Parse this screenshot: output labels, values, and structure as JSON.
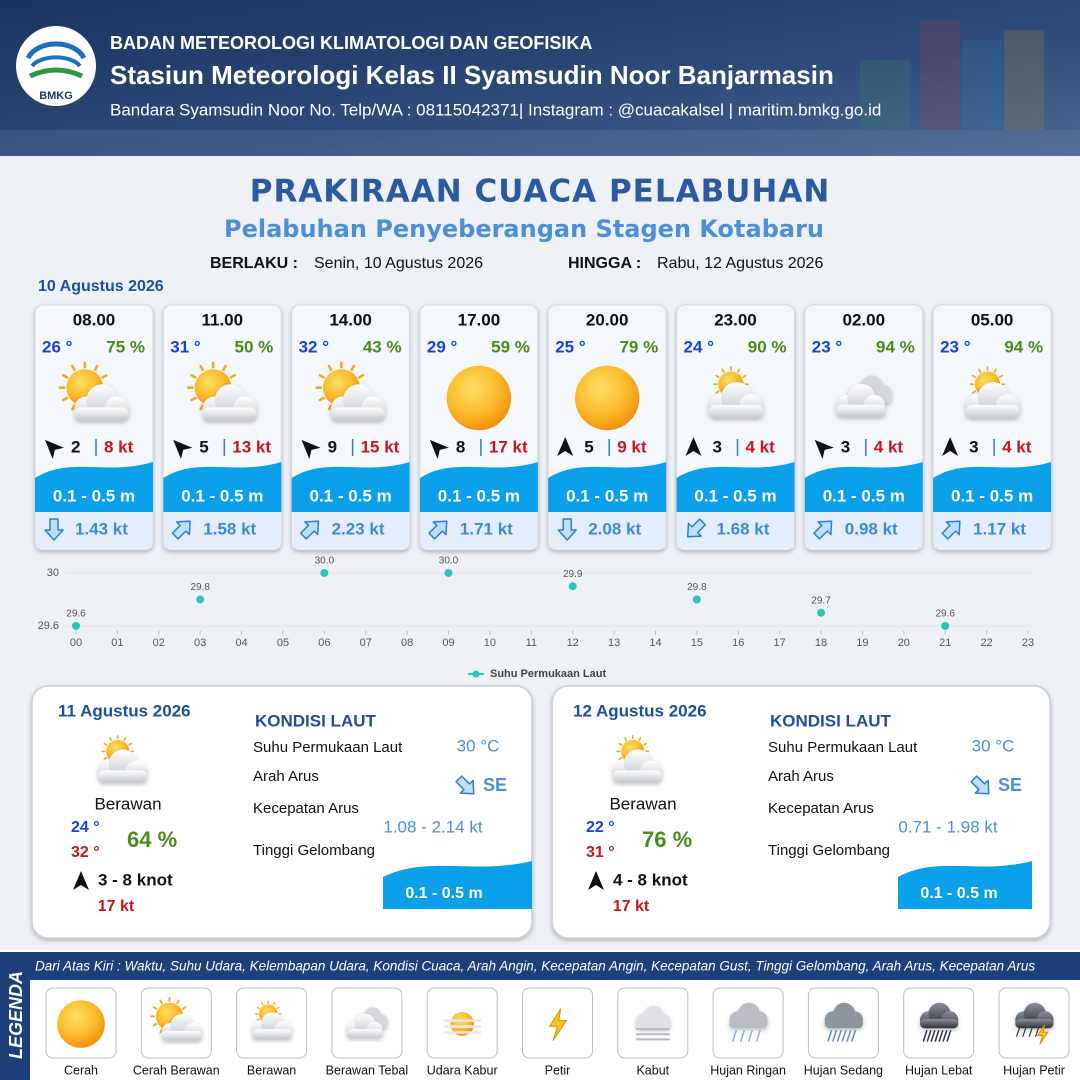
{
  "header": {
    "logo_text": "BMKG",
    "org": "BADAN METEOROLOGI KLIMATOLOGI DAN GEOFISIKA",
    "station": "Stasiun Meteorologi Kelas II Syamsudin Noor Banjarmasin",
    "contact": "Bandara Syamsudin Noor No. Telp/WA : 08115042371| Instagram : @cuacakalsel | maritim.bmkg.go.id"
  },
  "title": "PRAKIRAAN CUACA PELABUHAN",
  "subtitle": "Pelabuhan Penyeberangan Stagen Kotabaru",
  "validity": {
    "from_label": "BERLAKU :",
    "from": "Senin, 10 Agustus 2026",
    "to_label": "HINGGA :",
    "to": "Rabu, 12 Agustus 2026"
  },
  "today": {
    "date": "10 Agustus 2026",
    "forecasts": [
      {
        "time": "08.00",
        "temp": "26 °",
        "humidity": "75 %",
        "icon": "cerah-berawan",
        "wind_dir": "NW",
        "wind": "2",
        "gust": "8 kt",
        "wave": "0.1 - 0.5 m",
        "current_dir": "S",
        "current": "1.43 kt"
      },
      {
        "time": "11.00",
        "temp": "31 °",
        "humidity": "50 %",
        "icon": "cerah-berawan",
        "wind_dir": "NW",
        "wind": "5",
        "gust": "13 kt",
        "wave": "0.1 - 0.5 m",
        "current_dir": "NE",
        "current": "1.58 kt"
      },
      {
        "time": "14.00",
        "temp": "32 °",
        "humidity": "43 %",
        "icon": "cerah-berawan",
        "wind_dir": "NW",
        "wind": "9",
        "gust": "15 kt",
        "wave": "0.1 - 0.5 m",
        "current_dir": "NE",
        "current": "2.23 kt"
      },
      {
        "time": "17.00",
        "temp": "29 °",
        "humidity": "59 %",
        "icon": "cerah",
        "wind_dir": "NW",
        "wind": "8",
        "gust": "17 kt",
        "wave": "0.1 - 0.5 m",
        "current_dir": "NE",
        "current": "1.71 kt"
      },
      {
        "time": "20.00",
        "temp": "25 °",
        "humidity": "79 %",
        "icon": "cerah",
        "wind_dir": "N",
        "wind": "5",
        "gust": "9 kt",
        "wave": "0.1 - 0.5 m",
        "current_dir": "S",
        "current": "2.08 kt"
      },
      {
        "time": "23.00",
        "temp": "24 °",
        "humidity": "90 %",
        "icon": "berawan",
        "wind_dir": "N",
        "wind": "3",
        "gust": "4 kt",
        "wave": "0.1 - 0.5 m",
        "current_dir": "SW",
        "current": "1.68 kt"
      },
      {
        "time": "02.00",
        "temp": "23 °",
        "humidity": "94 %",
        "icon": "berawan-tebal",
        "wind_dir": "NW",
        "wind": "3",
        "gust": "4 kt",
        "wave": "0.1 - 0.5 m",
        "current_dir": "NE",
        "current": "0.98 kt"
      },
      {
        "time": "05.00",
        "temp": "23 °",
        "humidity": "94 %",
        "icon": "berawan",
        "wind_dir": "N",
        "wind": "3",
        "gust": "4 kt",
        "wave": "0.1 - 0.5 m",
        "current_dir": "NE",
        "current": "1.17 kt"
      }
    ]
  },
  "sst_chart": {
    "type": "scatter",
    "series_name": "Suhu Permukaan Laut",
    "color": "#2ec4b6",
    "x": [
      0,
      3,
      6,
      9,
      12,
      15,
      18,
      21
    ],
    "values": [
      29.6,
      29.8,
      30.0,
      30.0,
      29.9,
      29.8,
      29.7,
      29.6
    ],
    "value_labels": [
      "29.6",
      "29.8",
      "30.0",
      "30.0",
      "29.9",
      "29.8",
      "29.7",
      "29.6"
    ],
    "xlim": [
      0,
      23
    ],
    "xticks": [
      {
        "value": 0,
        "label": "00"
      },
      {
        "value": 1,
        "label": "01"
      },
      {
        "value": 2,
        "label": "02"
      },
      {
        "value": 3,
        "label": "03"
      },
      {
        "value": 4,
        "label": "04"
      },
      {
        "value": 5,
        "label": "05"
      },
      {
        "value": 6,
        "label": "06"
      },
      {
        "value": 7,
        "label": "07"
      },
      {
        "value": 8,
        "label": "08"
      },
      {
        "value": 9,
        "label": "09"
      },
      10,
      11,
      12,
      13,
      14,
      15,
      16,
      17,
      18,
      19,
      20,
      21,
      22,
      23
    ],
    "ylim": [
      29.58,
      30.02
    ],
    "yticks": [
      29.6,
      30
    ],
    "grid": true
  },
  "days": [
    {
      "date": "11 Agustus 2026",
      "icon": "berawan",
      "condition": "Berawan",
      "tmin": "24 °",
      "tmax": "32 °",
      "humidity": "64 %",
      "wind_dir": "N",
      "wind": "3 - 8 knot",
      "gust": "17 kt",
      "sea": {
        "title": "KONDISI LAUT",
        "sst_label": "Suhu Permukaan Laut",
        "sst": "30 °C",
        "current_dir_label": "Arah Arus",
        "current_dir": "SE",
        "current_speed_label": "Kecepatan Arus",
        "current_speed": "1.08 - 2.14 kt",
        "wave_label": "Tinggi Gelombang",
        "wave": "0.1 - 0.5 m"
      }
    },
    {
      "date": "12 Agustus 2026",
      "icon": "berawan",
      "condition": "Berawan",
      "tmin": "22 °",
      "tmax": "31 °",
      "humidity": "76 %",
      "wind_dir": "N",
      "wind": "4 - 8 knot",
      "gust": "17 kt",
      "sea": {
        "title": "KONDISI LAUT",
        "sst_label": "Suhu Permukaan Laut",
        "sst": "30 °C",
        "current_dir_label": "Arah Arus",
        "current_dir": "SE",
        "current_speed_label": "Kecepatan Arus",
        "current_speed": "0.71 - 1.98 kt",
        "wave_label": "Tinggi Gelombang",
        "wave": "0.1 - 0.5 m"
      }
    }
  ],
  "legend": {
    "title": "LEGENDA",
    "note": "Dari Atas Kiri : Waktu, Suhu Udara, Kelembapan Udara, Kondisi Cuaca, Arah Angin, Kecepatan Angin, Kecepatan Gust, Tinggi Gelombang, Arah Arus, Kecepatan Arus",
    "items": [
      {
        "icon": "cerah",
        "label": "Cerah"
      },
      {
        "icon": "cerah-berawan",
        "label": "Cerah Berawan"
      },
      {
        "icon": "berawan",
        "label": "Berawan"
      },
      {
        "icon": "berawan-tebal",
        "label": "Berawan Tebal"
      },
      {
        "icon": "udara-kabur",
        "label": "Udara Kabur"
      },
      {
        "icon": "petir",
        "label": "Petir"
      },
      {
        "icon": "kabut",
        "label": "Kabut"
      },
      {
        "icon": "hujan-ringan",
        "label": "Hujan Ringan"
      },
      {
        "icon": "hujan-sedang",
        "label": "Hujan Sedang"
      },
      {
        "icon": "hujan-lebat",
        "label": "Hujan Lebat"
      },
      {
        "icon": "hujan-petir",
        "label": "Hujan Petir"
      }
    ]
  }
}
